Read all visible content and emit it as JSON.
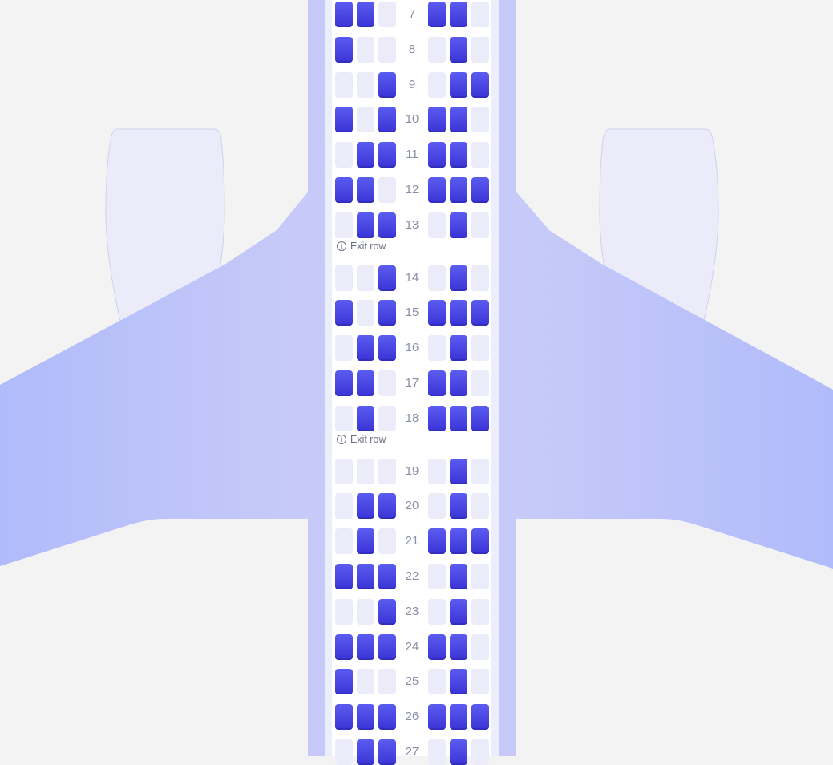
{
  "cabin": {
    "exit_label": "Exit row",
    "info_icon": "info-icon",
    "rows": [
      {
        "number": "7",
        "left": [
          1,
          1,
          0
        ],
        "right": [
          1,
          1,
          0
        ]
      },
      {
        "number": "8",
        "left": [
          1,
          0,
          0
        ],
        "right": [
          0,
          1,
          0
        ]
      },
      {
        "number": "9",
        "left": [
          0,
          0,
          1
        ],
        "right": [
          0,
          1,
          1
        ]
      },
      {
        "number": "10",
        "left": [
          1,
          0,
          1
        ],
        "right": [
          1,
          1,
          0
        ]
      },
      {
        "number": "11",
        "left": [
          0,
          1,
          1
        ],
        "right": [
          1,
          1,
          0
        ]
      },
      {
        "number": "12",
        "left": [
          1,
          1,
          0
        ],
        "right": [
          1,
          1,
          1
        ]
      },
      {
        "number": "13",
        "left": [
          0,
          1,
          1
        ],
        "right": [
          0,
          1,
          0
        ],
        "exit_after": true
      },
      {
        "number": "14",
        "left": [
          0,
          0,
          1
        ],
        "right": [
          0,
          1,
          0
        ]
      },
      {
        "number": "15",
        "left": [
          1,
          0,
          1
        ],
        "right": [
          1,
          1,
          1
        ]
      },
      {
        "number": "16",
        "left": [
          0,
          1,
          1
        ],
        "right": [
          0,
          1,
          0
        ]
      },
      {
        "number": "17",
        "left": [
          1,
          1,
          0
        ],
        "right": [
          1,
          1,
          0
        ]
      },
      {
        "number": "18",
        "left": [
          0,
          1,
          0
        ],
        "right": [
          1,
          1,
          1
        ],
        "exit_after": true
      },
      {
        "number": "19",
        "left": [
          0,
          0,
          0
        ],
        "right": [
          0,
          1,
          0
        ]
      },
      {
        "number": "20",
        "left": [
          0,
          1,
          1
        ],
        "right": [
          0,
          1,
          0
        ]
      },
      {
        "number": "21",
        "left": [
          0,
          1,
          0
        ],
        "right": [
          1,
          1,
          1
        ]
      },
      {
        "number": "22",
        "left": [
          1,
          1,
          1
        ],
        "right": [
          0,
          1,
          0
        ]
      },
      {
        "number": "23",
        "left": [
          0,
          0,
          1
        ],
        "right": [
          0,
          1,
          0
        ]
      },
      {
        "number": "24",
        "left": [
          1,
          1,
          1
        ],
        "right": [
          1,
          1,
          0
        ]
      },
      {
        "number": "25",
        "left": [
          1,
          0,
          0
        ],
        "right": [
          0,
          1,
          0
        ]
      },
      {
        "number": "26",
        "left": [
          1,
          1,
          1
        ],
        "right": [
          1,
          1,
          1
        ]
      },
      {
        "number": "27",
        "left": [
          0,
          1,
          1
        ],
        "right": [
          0,
          1,
          0
        ]
      }
    ]
  },
  "colors": {
    "background": "#f3f3f3",
    "fuselage": "#c7caf8",
    "wing": "#b4bdfb",
    "engine": "#ebebfa",
    "seat_taken": "#4338e0",
    "seat_free": "#ebebfa",
    "row_number": "#8a8fa8"
  }
}
